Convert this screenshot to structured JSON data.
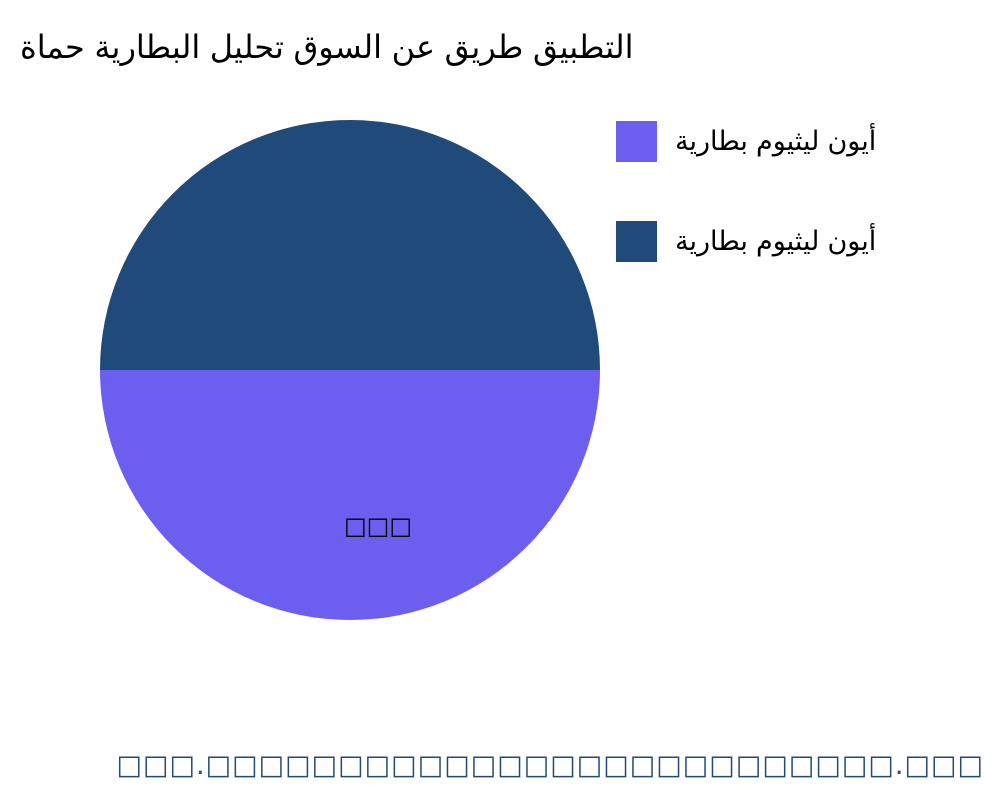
{
  "chart_data": {
    "type": "pie",
    "title": "حماة البطارية تحليل السوق عن طريق التطبيق",
    "slices": [
      {
        "name": "بطارية ليثيوم أيون",
        "value": 50,
        "label": "□□□",
        "color": "#6c5ff0"
      },
      {
        "name": "بطارية ليثيوم أيون",
        "value": 50,
        "label": "□□□",
        "color": "#1f4a7a"
      }
    ],
    "legend_placement": "top-right"
  },
  "footer": {
    "text": "□□□.□□□□□□□□□□□□□□□□□□□□□□□□□□.□□□"
  }
}
